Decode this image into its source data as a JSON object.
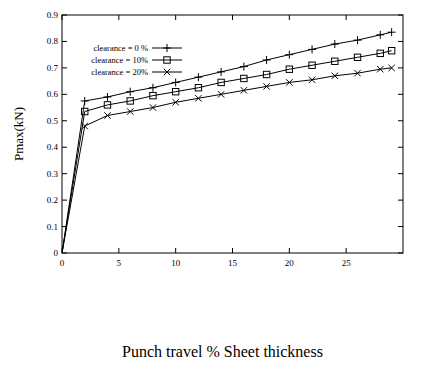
{
  "chart_data": {
    "type": "line",
    "x_label": "Punch travel % Sheet thickness",
    "y_label": "Pmax(kN)",
    "x": [
      0,
      2,
      4,
      6,
      8,
      10,
      12,
      14,
      16,
      18,
      20,
      22,
      24,
      26,
      28,
      29
    ],
    "series": [
      {
        "name": "clearance = 0 %",
        "color": "#000000",
        "marker": "plus",
        "line_style": "solid",
        "values": [
          0,
          0.575,
          0.59,
          0.61,
          0.625,
          0.645,
          0.665,
          0.685,
          0.705,
          0.73,
          0.75,
          0.77,
          0.79,
          0.805,
          0.825,
          0.835
        ]
      },
      {
        "name": "clearance = 10%",
        "color": "#000000",
        "marker": "square",
        "line_style": "solid",
        "values": [
          0,
          0.535,
          0.56,
          0.575,
          0.595,
          0.61,
          0.625,
          0.645,
          0.66,
          0.675,
          0.695,
          0.71,
          0.725,
          0.74,
          0.755,
          0.765
        ]
      },
      {
        "name": "clearance = 20%",
        "color": "#000000",
        "marker": "x",
        "line_style": "solid",
        "values": [
          0,
          0.48,
          0.52,
          0.535,
          0.55,
          0.57,
          0.585,
          0.6,
          0.615,
          0.63,
          0.645,
          0.655,
          0.67,
          0.68,
          0.695,
          0.7
        ]
      }
    ],
    "xlim": [
      0,
      30
    ],
    "ylim": [
      0,
      0.9
    ],
    "xticks": [
      0,
      5,
      10,
      15,
      20,
      25
    ],
    "yticks": [
      0,
      0.1,
      0.2,
      0.3,
      0.4,
      0.5,
      0.6,
      0.7,
      0.8,
      0.9
    ],
    "legend": "upper left",
    "grid": false
  }
}
